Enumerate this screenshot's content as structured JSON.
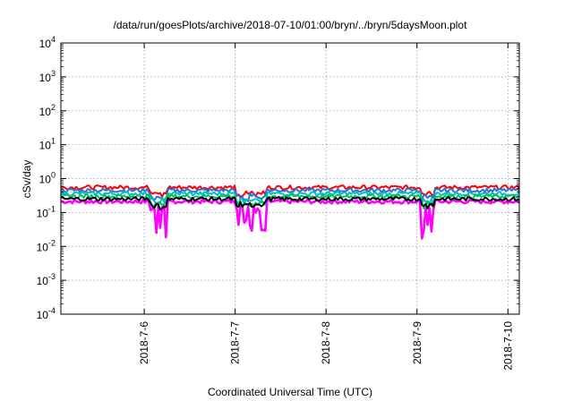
{
  "chart_data": {
    "type": "line",
    "title": "/data/run/goesPlots/archive/2018-07-10/01:00/bryn/../bryn/5daysMoon.plot",
    "xlabel": "Coordinated Universal Time (UTC)",
    "ylabel": "cSv/day",
    "yscale": "log",
    "ylim_exponents": [
      -4,
      4
    ],
    "xlim_days": [
      "2018-07-05 02:00",
      "2018-07-10 03:00"
    ],
    "x_ticks": [
      "2018-7-6",
      "2018-7-7",
      "2018-7-8",
      "2018-7-9",
      "2018-7-10"
    ],
    "y_ticks": [
      {
        "base": "10",
        "exp": "-4"
      },
      {
        "base": "10",
        "exp": "-3"
      },
      {
        "base": "10",
        "exp": "-2"
      },
      {
        "base": "10",
        "exp": "-1"
      },
      {
        "base": "10",
        "exp": "0"
      },
      {
        "base": "10",
        "exp": "1"
      },
      {
        "base": "10",
        "exp": "2"
      },
      {
        "base": "10",
        "exp": "3"
      },
      {
        "base": "10",
        "exp": "4"
      }
    ],
    "grid": true,
    "series_colors": [
      "#ff00ff",
      "#ff0000",
      "#2f6fd8",
      "#00c060",
      "#00c0c0",
      "#000000"
    ],
    "series": [
      {
        "color": "#ff00ff",
        "baseline": 0.21,
        "note_dips": true
      },
      {
        "color": "#ff0000",
        "baseline": 0.55
      },
      {
        "color": "#2f6fd8",
        "baseline": 0.45
      },
      {
        "color": "#00c0c0",
        "baseline": 0.36
      },
      {
        "color": "#00c060",
        "baseline": 0.3
      },
      {
        "color": "#000000",
        "baseline": 0.25
      }
    ]
  }
}
